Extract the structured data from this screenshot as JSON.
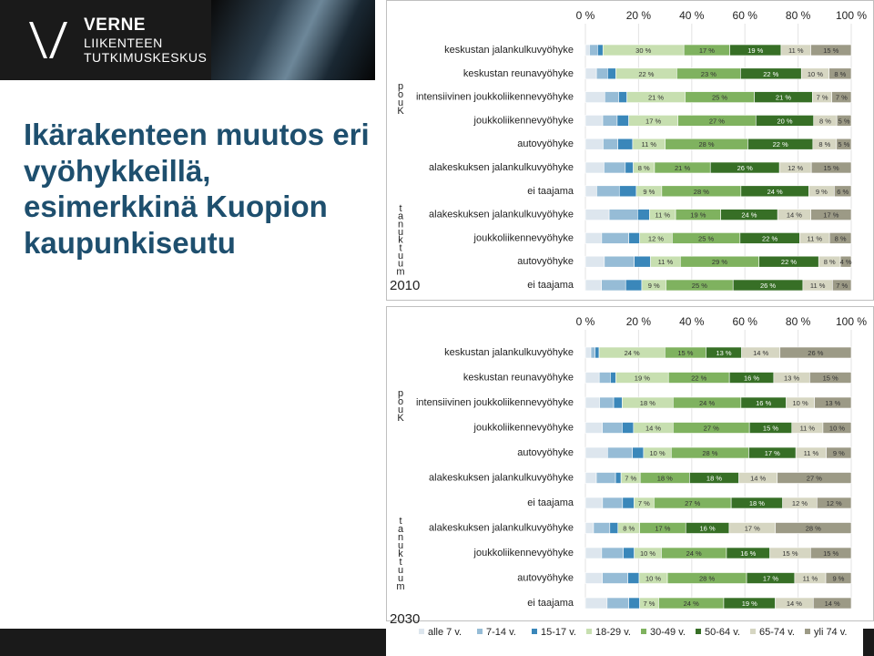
{
  "logo": {
    "line1": "VERNE",
    "line2": "LIIKENTEEN",
    "line3": "TUTKIMUSKESKUS"
  },
  "title": "Ikärakenteen muutos eri vyöhykkeillä, esimerkkinä Kuopion kaupunkiseutu",
  "colors": {
    "alle7": "#dde6ee",
    "v7_14": "#96bcd6",
    "v15_17": "#3a87ba",
    "v18_29": "#c7dfb0",
    "v30_49": "#7fb25f",
    "v50_64": "#376f26",
    "v65_74": "#d6d6c2",
    "yli74": "#9c9a86"
  },
  "legend": [
    {
      "label": "alle 7 v.",
      "color_key": "alle7"
    },
    {
      "label": "7-14 v.",
      "color_key": "v7_14"
    },
    {
      "label": "15-17 v.",
      "color_key": "v15_17"
    },
    {
      "label": "18-29 v.",
      "color_key": "v18_29"
    },
    {
      "label": "30-49 v.",
      "color_key": "v30_49"
    },
    {
      "label": "50-64 v.",
      "color_key": "v50_64"
    },
    {
      "label": "65-74 v.",
      "color_key": "v65_74"
    },
    {
      "label": "yli 74 v.",
      "color_key": "yli74"
    }
  ],
  "chart_data": [
    {
      "type": "bar",
      "stacked": true,
      "orientation": "horizontal",
      "year": "2010",
      "xticks": [
        "0 %",
        "20 %",
        "40 %",
        "60 %",
        "80 %",
        "100 %"
      ],
      "xlim": [
        0,
        100
      ],
      "group_labels": [
        "p\no\nu\nK",
        "t\na\nn\nu\nk\nt\nu\nu\nm"
      ],
      "rows": [
        {
          "category": "keskustan jalankulkuvyöhyke",
          "values": [
            1.5,
            3,
            2,
            30,
            17,
            19,
            11,
            15
          ],
          "labels": [
            "",
            "",
            "",
            "30 %",
            "17 %",
            "19 %",
            "11 %",
            "15 %"
          ]
        },
        {
          "category": "keskustan reunavyöhyke",
          "values": [
            4,
            4,
            3,
            22,
            23,
            22,
            10,
            8
          ],
          "labels": [
            "",
            "",
            "",
            "22 %",
            "23 %",
            "22 %",
            "10 %",
            "8 %"
          ]
        },
        {
          "category": "intensiivinen joukkoliikennevyöhyke",
          "values": [
            7,
            5,
            3,
            21,
            25,
            21,
            7,
            7
          ],
          "labels": [
            "",
            "",
            "",
            "21 %",
            "25 %",
            "21 %",
            "7 %",
            "7 %"
          ]
        },
        {
          "category": "joukkoliikennevyöhyke",
          "values": [
            6,
            5,
            4,
            17,
            27,
            20,
            8,
            5
          ],
          "labels": [
            "",
            "",
            "",
            "17 %",
            "27 %",
            "20 %",
            "8 %",
            "5 %"
          ]
        },
        {
          "category": "autovyöhyke",
          "values": [
            6,
            5,
            5,
            11,
            28,
            22,
            8,
            5
          ],
          "labels": [
            "",
            "",
            "",
            "11 %",
            "28 %",
            "22 %",
            "8 %",
            "5 %"
          ]
        },
        {
          "category": "alakeskuksen jalankulkuvyöhyke",
          "values": [
            7,
            8,
            3,
            8,
            21,
            26,
            12,
            15
          ],
          "labels": [
            "",
            "",
            "",
            "8 %",
            "21 %",
            "26 %",
            "12 %",
            "15 %"
          ]
        },
        {
          "category": "ei taajama",
          "values": [
            4,
            8,
            6,
            9,
            28,
            24,
            9,
            6
          ],
          "labels": [
            "",
            "",
            "",
            "9 %",
            "28 %",
            "24 %",
            "9 %",
            "6 %"
          ]
        },
        {
          "category": "alakeskuksen jalankulkuvyöhyke",
          "values": [
            10,
            12,
            5,
            11,
            19,
            24,
            14,
            17
          ],
          "labels": [
            "",
            "",
            "",
            "11 %",
            "19 %",
            "24 %",
            "14 %",
            "17 %"
          ]
        },
        {
          "category": "joukkoliikennevyöhyke",
          "values": [
            6,
            10,
            4,
            12,
            25,
            22,
            11,
            8
          ],
          "labels": [
            "",
            "",
            "",
            "12 %",
            "25 %",
            "22 %",
            "11 %",
            "8 %"
          ]
        },
        {
          "category": "autovyöhyke",
          "values": [
            7,
            11,
            6,
            11,
            29,
            22,
            8,
            4
          ],
          "labels": [
            "",
            "",
            "",
            "11 %",
            "29 %",
            "22 %",
            "8 %",
            "4 %"
          ]
        },
        {
          "category": "ei taajama",
          "values": [
            6,
            9,
            6,
            9,
            25,
            26,
            11,
            7
          ],
          "labels": [
            "",
            "",
            "",
            "9 %",
            "25 %",
            "26 %",
            "11 %",
            "7 %"
          ]
        }
      ]
    },
    {
      "type": "bar",
      "stacked": true,
      "orientation": "horizontal",
      "year": "2030",
      "xticks": [
        "0 %",
        "20 %",
        "40 %",
        "60 %",
        "80 %",
        "100 %"
      ],
      "xlim": [
        0,
        100
      ],
      "group_labels": [
        "p\no\nu\nK",
        "t\na\nn\nu\nk\nt\nu\nu\nm"
      ],
      "rows": [
        {
          "category": "keskustan jalankulkuvyöhyke",
          "values": [
            2,
            1.5,
            1.5,
            24,
            15,
            13,
            14,
            26
          ],
          "labels": [
            "",
            "",
            "",
            "24 %",
            "15 %",
            "13 %",
            "14 %",
            "26 %"
          ]
        },
        {
          "category": "keskustan reunavyöhyke",
          "values": [
            5,
            4,
            2,
            19,
            22,
            16,
            13,
            15
          ],
          "labels": [
            "",
            "",
            "",
            "19 %",
            "22 %",
            "16 %",
            "13 %",
            "15 %"
          ]
        },
        {
          "category": "intensiivinen joukkoliikennevyöhyke",
          "values": [
            5,
            5,
            3,
            18,
            24,
            16,
            10,
            13
          ],
          "labels": [
            "",
            "",
            "",
            "18 %",
            "24 %",
            "16 %",
            "10 %",
            "13 %"
          ]
        },
        {
          "category": "joukkoliikennevyöhyke",
          "values": [
            6,
            7,
            4,
            14,
            27,
            15,
            11,
            10
          ],
          "labels": [
            "",
            "",
            "",
            "14 %",
            "27 %",
            "15 %",
            "11 %",
            "10 %"
          ]
        },
        {
          "category": "autovyöhyke",
          "values": [
            8,
            9,
            4,
            10,
            28,
            17,
            11,
            9
          ],
          "labels": [
            "",
            "",
            "",
            "10 %",
            "28 %",
            "17 %",
            "11 %",
            "9 %"
          ]
        },
        {
          "category": "alakeskuksen jalankulkuvyöhyke",
          "values": [
            4,
            7,
            2,
            7,
            18,
            18,
            14,
            27
          ],
          "labels": [
            "",
            "",
            "",
            "7 %",
            "18 %",
            "18 %",
            "14 %",
            "27 %"
          ]
        },
        {
          "category": "ei taajama",
          "values": [
            6,
            7,
            4,
            7,
            27,
            18,
            12,
            12
          ],
          "labels": [
            "",
            "",
            "",
            "7 %",
            "27 %",
            "18 %",
            "12 %",
            "12 %"
          ]
        },
        {
          "category": "alakeskuksen jalankulkuvyöhyke",
          "values": [
            3,
            6,
            3,
            8,
            17,
            16,
            17,
            28
          ],
          "labels": [
            "",
            "",
            "",
            "8 %",
            "17 %",
            "16 %",
            "17 %",
            "28 %"
          ]
        },
        {
          "category": "joukkoliikennevyöhyke",
          "values": [
            6,
            8,
            4,
            10,
            24,
            16,
            15,
            15
          ],
          "labels": [
            "",
            "",
            "",
            "10 %",
            "24 %",
            "16 %",
            "15 %",
            "15 %"
          ]
        },
        {
          "category": "autovyöhyke",
          "values": [
            6,
            9,
            4,
            10,
            28,
            17,
            11,
            9
          ],
          "labels": [
            "",
            "",
            "",
            "10 %",
            "28 %",
            "17 %",
            "11 %",
            "9 %"
          ]
        },
        {
          "category": "ei taajama",
          "values": [
            8,
            8,
            4,
            7,
            24,
            19,
            14,
            14
          ],
          "labels": [
            "",
            "",
            "",
            "7 %",
            "24 %",
            "19 %",
            "14 %",
            "14 %"
          ]
        }
      ]
    }
  ]
}
